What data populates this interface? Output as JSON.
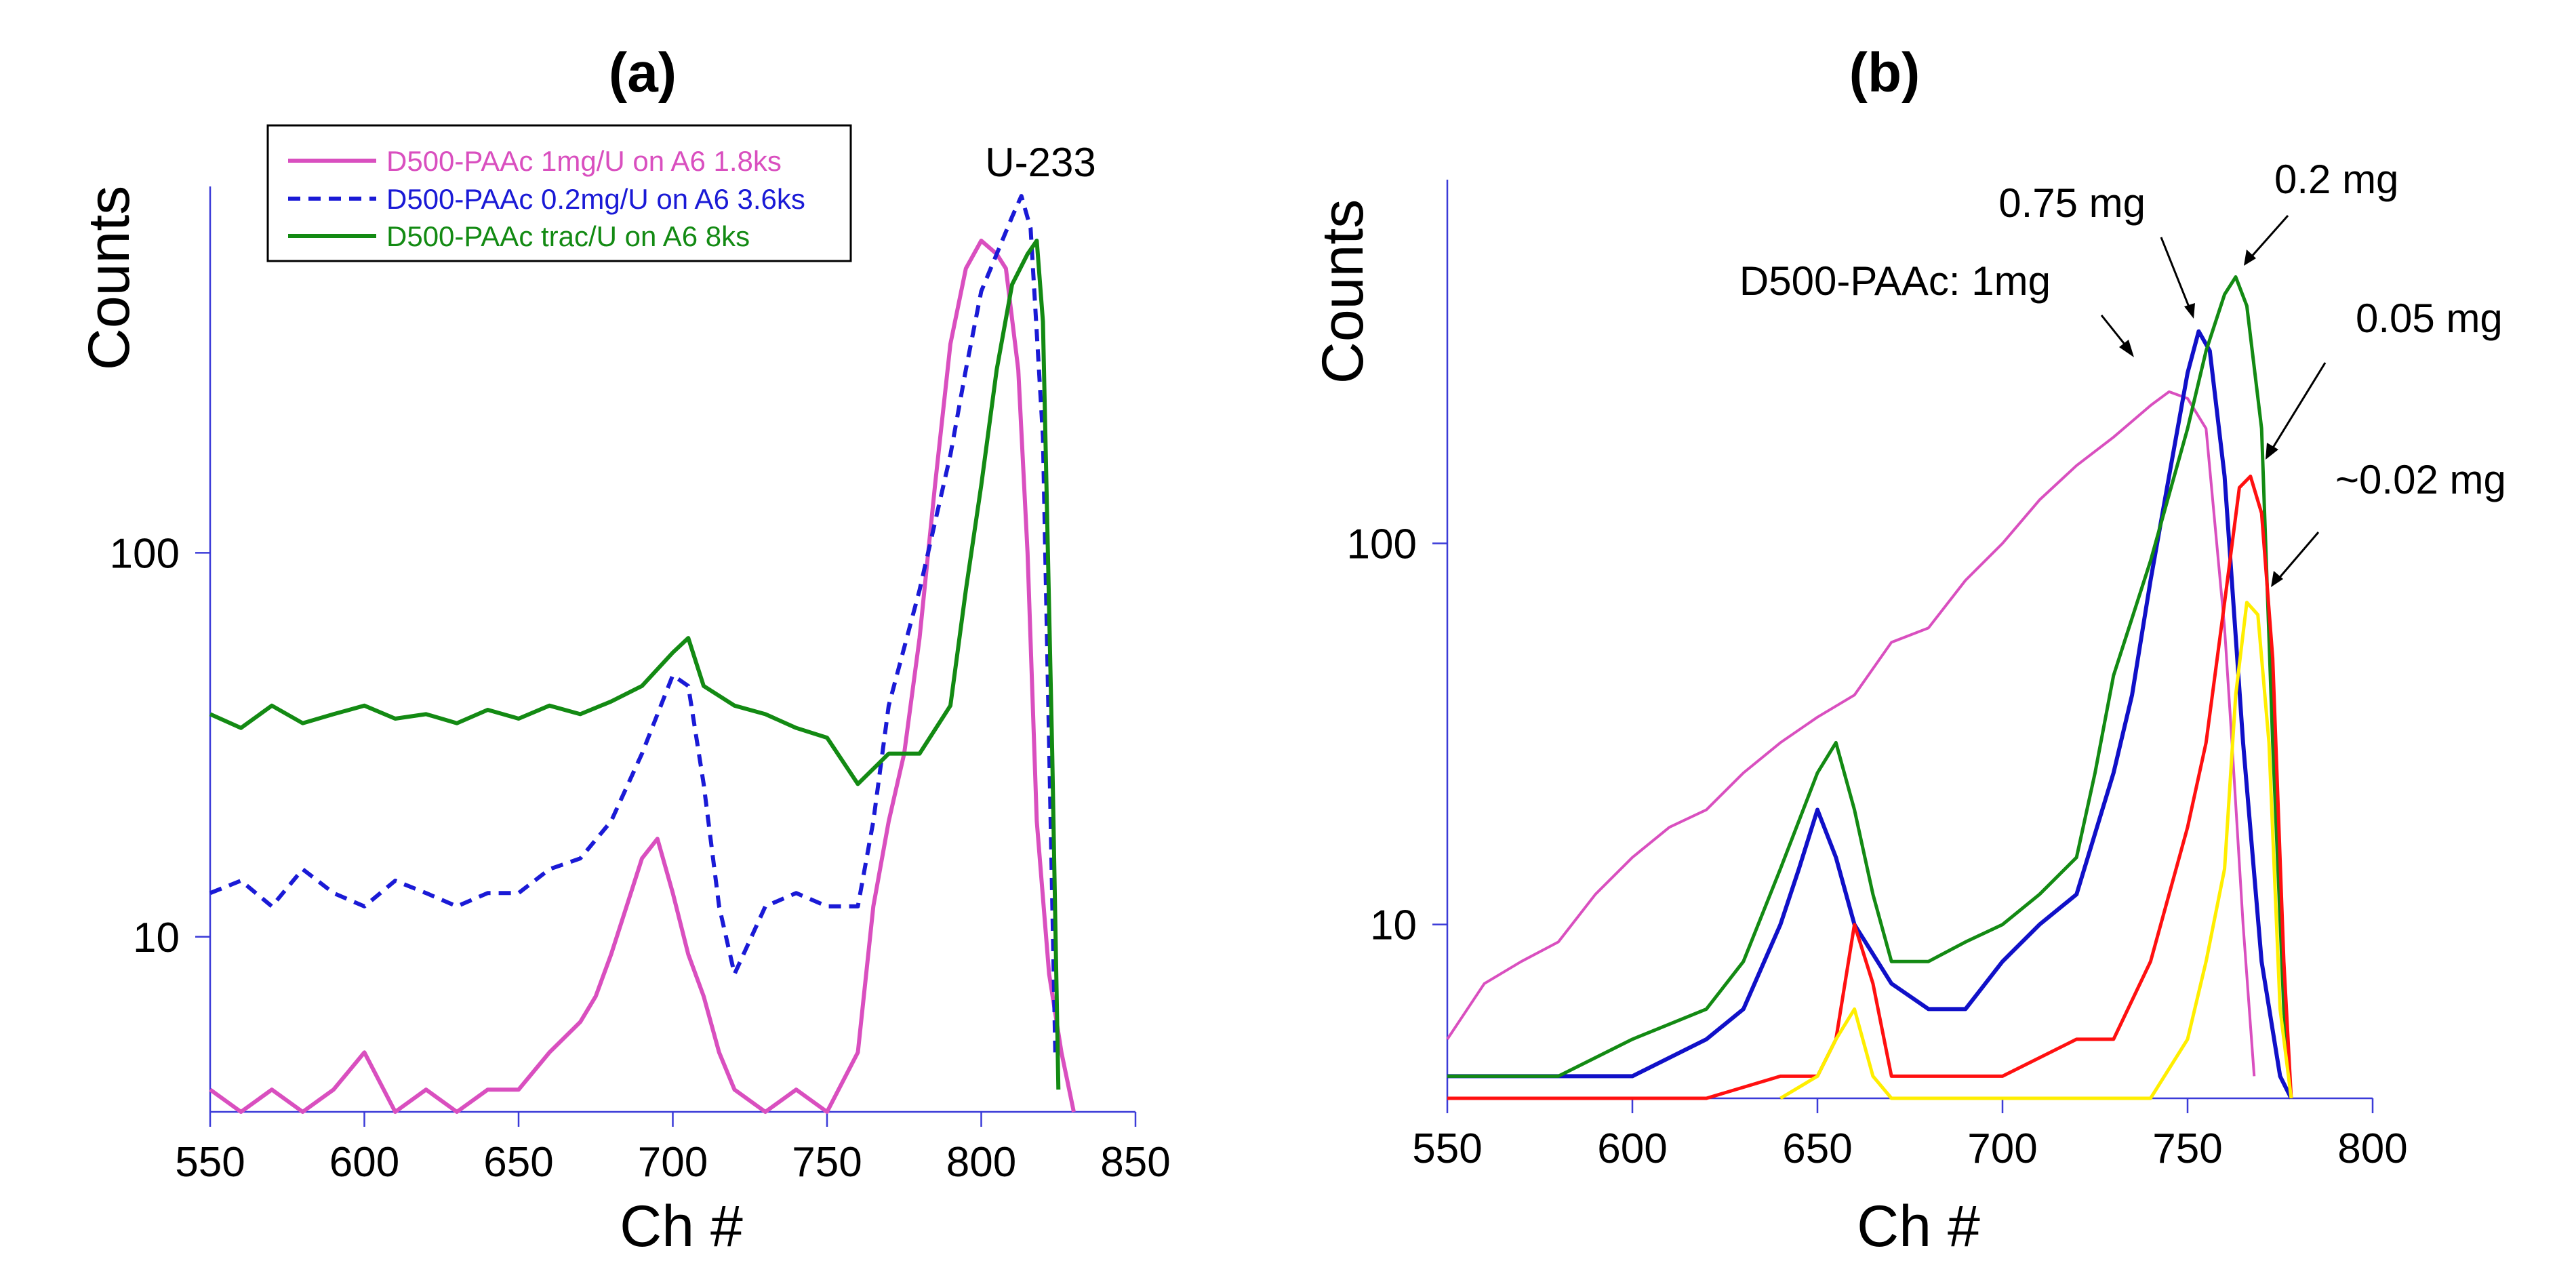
{
  "chart_data": [
    {
      "type": "line",
      "panel_label": "(a)",
      "xlabel": "Ch #",
      "ylabel": "Counts",
      "xlim": [
        550,
        850
      ],
      "ylim": [
        3.5,
        900
      ],
      "y_scale": "log",
      "x_ticks": [
        550,
        600,
        650,
        700,
        750,
        800,
        850
      ],
      "y_ticks": [
        10,
        100
      ],
      "legend_position": "top-left",
      "annotations": [
        {
          "text": "U-233",
          "x": 812,
          "y": 800
        }
      ],
      "series": [
        {
          "name": "D500-PAAc 1mg/U on A6 1.8ks",
          "color": "#d94fbf",
          "dash": "solid",
          "x": [
            550,
            560,
            570,
            580,
            590,
            600,
            610,
            620,
            630,
            640,
            650,
            660,
            670,
            675,
            680,
            685,
            690,
            695,
            700,
            705,
            710,
            715,
            720,
            730,
            740,
            750,
            760,
            765,
            770,
            775,
            780,
            785,
            790,
            795,
            800,
            805,
            808,
            812,
            815,
            818,
            822,
            826,
            830
          ],
          "y": [
            4,
            3.5,
            4,
            3.5,
            4,
            5,
            3.5,
            4,
            3.5,
            4,
            4,
            5,
            6,
            7,
            9,
            12,
            16,
            18,
            13,
            9,
            7,
            5,
            4,
            3.5,
            4,
            3.5,
            5,
            12,
            20,
            30,
            60,
            150,
            350,
            550,
            650,
            600,
            550,
            300,
            100,
            20,
            8,
            5,
            3.5
          ]
        },
        {
          "name": "D500-PAAc 0.2mg/U on A6 3.6ks",
          "color": "#1a1ad6",
          "dash": "dash",
          "x": [
            550,
            560,
            570,
            580,
            590,
            600,
            610,
            620,
            630,
            640,
            650,
            660,
            670,
            680,
            690,
            700,
            705,
            710,
            715,
            720,
            730,
            740,
            750,
            760,
            765,
            770,
            780,
            790,
            795,
            800,
            805,
            810,
            813,
            816,
            820,
            824
          ],
          "y": [
            13,
            14,
            12,
            15,
            13,
            12,
            14,
            13,
            12,
            13,
            13,
            15,
            16,
            20,
            30,
            48,
            45,
            25,
            12,
            8,
            12,
            13,
            12,
            12,
            20,
            40,
            80,
            180,
            300,
            480,
            600,
            750,
            850,
            700,
            200,
            5
          ]
        },
        {
          "name": "D500-PAAc trac/U on A6 8ks",
          "color": "#138a13",
          "dash": "solid",
          "x": [
            550,
            560,
            570,
            580,
            590,
            600,
            610,
            620,
            630,
            640,
            650,
            660,
            670,
            680,
            690,
            700,
            705,
            710,
            720,
            730,
            740,
            750,
            760,
            770,
            780,
            790,
            795,
            800,
            805,
            810,
            815,
            818,
            820,
            823,
            825
          ],
          "y": [
            38,
            35,
            40,
            36,
            38,
            40,
            37,
            38,
            36,
            39,
            37,
            40,
            38,
            41,
            45,
            55,
            60,
            45,
            40,
            38,
            35,
            33,
            25,
            30,
            30,
            40,
            80,
            150,
            300,
            500,
            600,
            650,
            400,
            30,
            4
          ]
        }
      ]
    },
    {
      "type": "line",
      "panel_label": "(b)",
      "xlabel": "Ch #",
      "ylabel": "Counts",
      "xlim": [
        550,
        800
      ],
      "ylim": [
        3.5,
        900
      ],
      "y_scale": "log",
      "x_ticks": [
        550,
        600,
        650,
        700,
        750,
        800
      ],
      "y_ticks": [
        10,
        100
      ],
      "annotations": [
        {
          "text": "D500-PAAc: 1mg",
          "series": 0
        },
        {
          "text": "0.75 mg",
          "series": 1
        },
        {
          "text": "0.2 mg",
          "series": 2
        },
        {
          "text": "0.05 mg",
          "series": 3
        },
        {
          "text": "~0.02 mg",
          "series": 4
        }
      ],
      "series": [
        {
          "color": "#d94fbf",
          "x": [
            550,
            560,
            570,
            580,
            590,
            600,
            610,
            620,
            630,
            640,
            650,
            660,
            670,
            680,
            690,
            700,
            710,
            720,
            730,
            740,
            745,
            750,
            755,
            760,
            762,
            765,
            768
          ],
          "y": [
            5,
            7,
            8,
            9,
            12,
            15,
            18,
            20,
            25,
            30,
            35,
            40,
            55,
            60,
            80,
            100,
            130,
            160,
            190,
            230,
            250,
            240,
            200,
            60,
            30,
            10,
            4
          ],
          "width": 4
        },
        {
          "color": "#1010c8",
          "x": [
            550,
            580,
            600,
            620,
            630,
            640,
            645,
            650,
            655,
            660,
            670,
            680,
            690,
            700,
            710,
            720,
            730,
            735,
            740,
            745,
            750,
            753,
            756,
            760,
            765,
            770,
            775,
            778
          ],
          "y": [
            4,
            4,
            4,
            5,
            6,
            10,
            14,
            20,
            15,
            10,
            7,
            6,
            6,
            8,
            10,
            12,
            25,
            40,
            80,
            150,
            280,
            360,
            320,
            150,
            30,
            8,
            4,
            3.5
          ],
          "width": 6
        },
        {
          "color": "#138a13",
          "x": [
            550,
            580,
            600,
            620,
            630,
            640,
            650,
            655,
            660,
            665,
            670,
            680,
            690,
            700,
            710,
            720,
            725,
            730,
            740,
            750,
            755,
            760,
            763,
            766,
            770,
            773,
            776,
            778
          ],
          "y": [
            4,
            4,
            5,
            6,
            8,
            14,
            25,
            30,
            20,
            12,
            8,
            8,
            9,
            10,
            12,
            15,
            25,
            45,
            90,
            200,
            320,
            450,
            500,
            420,
            200,
            30,
            6,
            3.5
          ],
          "width": 5
        },
        {
          "color": "#ff1010",
          "x": [
            550,
            620,
            640,
            650,
            655,
            660,
            665,
            670,
            680,
            700,
            720,
            730,
            740,
            745,
            750,
            755,
            760,
            764,
            767,
            770,
            773,
            776,
            778
          ],
          "y": [
            3.5,
            3.5,
            4,
            4,
            5,
            10,
            7,
            4,
            4,
            4,
            5,
            5,
            8,
            12,
            18,
            30,
            70,
            140,
            150,
            120,
            50,
            8,
            3.5
          ],
          "width": 5
        },
        {
          "color": "#ffee00",
          "x": [
            640,
            650,
            655,
            660,
            665,
            670,
            680,
            700,
            720,
            740,
            750,
            755,
            760,
            763,
            766,
            769,
            772,
            775,
            778
          ],
          "y": [
            3.5,
            4,
            5,
            6,
            4,
            3.5,
            3.5,
            3.5,
            3.5,
            3.5,
            5,
            8,
            14,
            40,
            70,
            65,
            30,
            6,
            3.5
          ],
          "width": 5
        }
      ]
    }
  ]
}
